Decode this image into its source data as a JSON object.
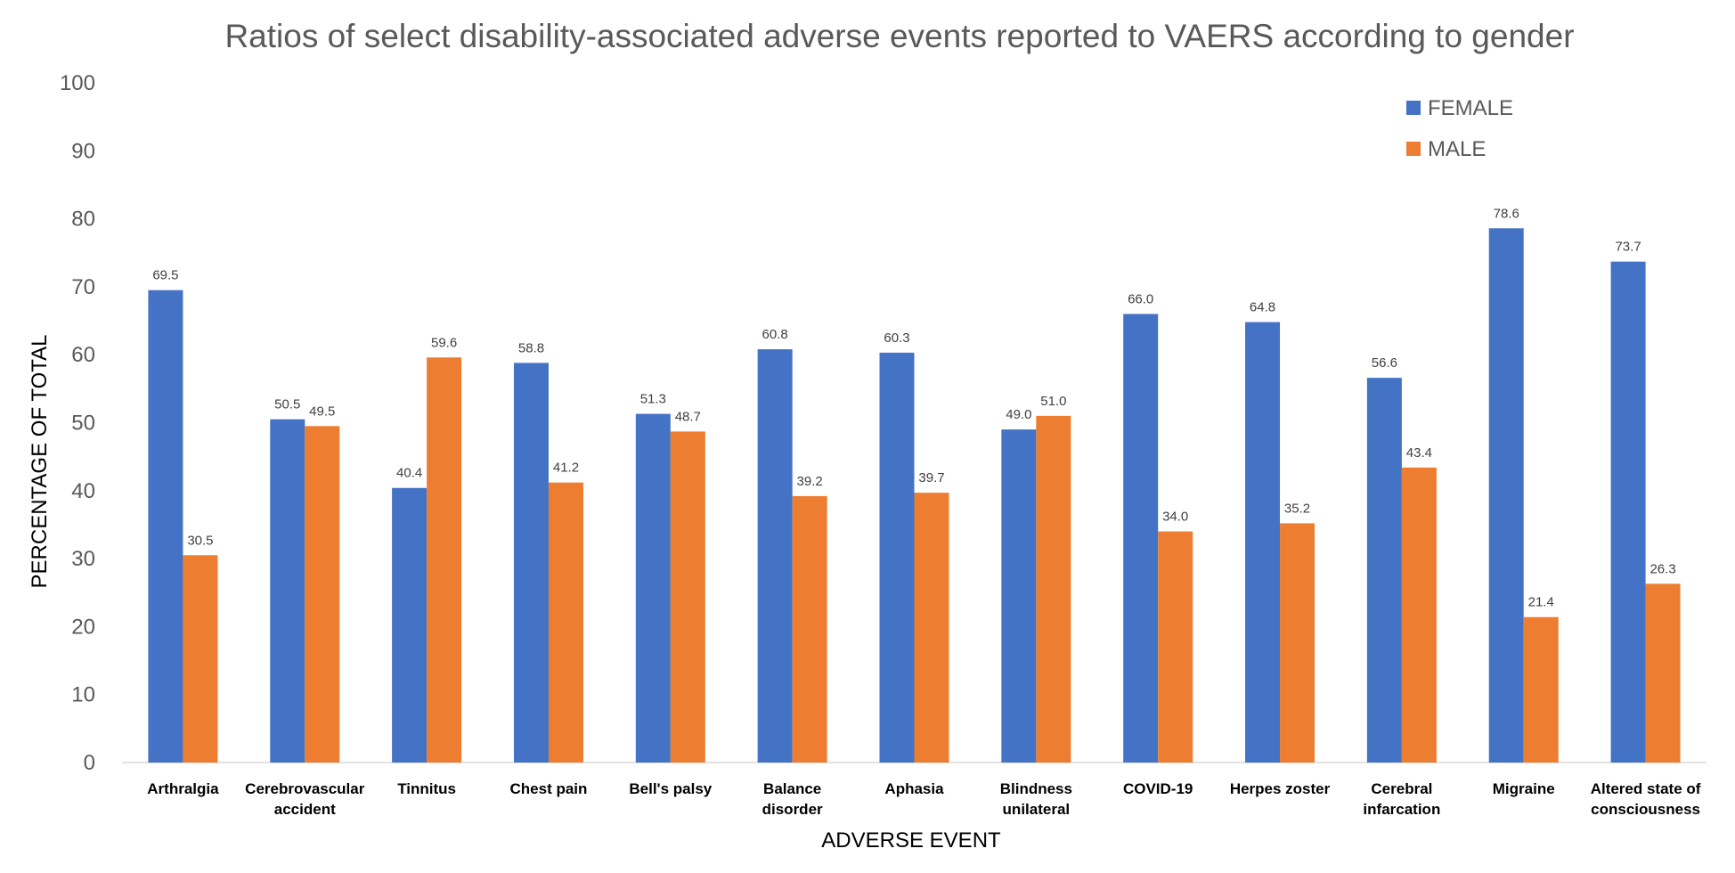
{
  "chart_data": {
    "type": "bar",
    "title": "Ratios of select disability-associated adverse events reported to VAERS according to gender",
    "xlabel": "ADVERSE EVENT",
    "ylabel": "PERCENTAGE OF TOTAL",
    "ylim": [
      0,
      100
    ],
    "yticks": [
      "0",
      "10",
      "20",
      "30",
      "40",
      "50",
      "60",
      "70",
      "80",
      "90",
      "100"
    ],
    "grid": false,
    "legend_position": "top-right",
    "categories": [
      [
        "Arthralgia"
      ],
      [
        "Cerebrovascular",
        "accident"
      ],
      [
        "Tinnitus"
      ],
      [
        "Chest pain"
      ],
      [
        "Bell's palsy"
      ],
      [
        "Balance",
        "disorder"
      ],
      [
        "Aphasia"
      ],
      [
        "Blindness",
        "unilateral"
      ],
      [
        "COVID-19"
      ],
      [
        "Herpes zoster"
      ],
      [
        "Cerebral",
        "infarcation"
      ],
      [
        "Migraine"
      ],
      [
        "Altered state of",
        "consciousness"
      ]
    ],
    "series": [
      {
        "name": "FEMALE",
        "color": "#4472C4",
        "values": [
          69.5,
          50.5,
          40.4,
          58.8,
          51.3,
          60.8,
          60.3,
          49.0,
          66.0,
          64.8,
          56.6,
          78.6,
          73.7
        ],
        "labels": [
          "69.5",
          "50.5",
          "40.4",
          "58.8",
          "51.3",
          "60.8",
          "60.3",
          "49.0",
          "66.0",
          "64.8",
          "56.6",
          "78.6",
          "73.7"
        ]
      },
      {
        "name": "MALE",
        "color": "#ED7D31",
        "values": [
          30.5,
          49.5,
          59.6,
          41.2,
          48.7,
          39.2,
          39.7,
          51.0,
          34.0,
          35.2,
          43.4,
          21.4,
          26.3
        ],
        "labels": [
          "30.5",
          "49.5",
          "59.6",
          "41.2",
          "48.7",
          "39.2",
          "39.7",
          "51.0",
          "34.0",
          "35.2",
          "43.4",
          "21.4",
          "26.3"
        ]
      }
    ]
  }
}
